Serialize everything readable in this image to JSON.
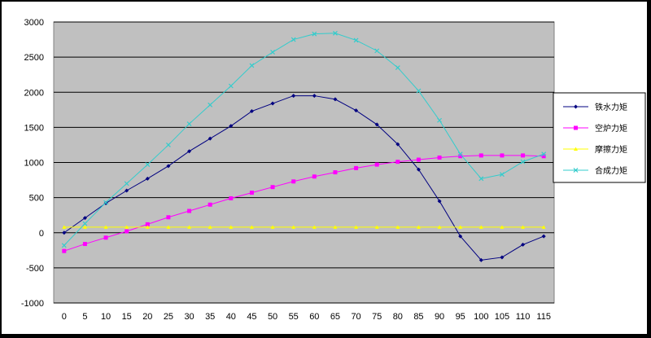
{
  "chart_data": {
    "type": "line",
    "title": "",
    "xlabel": "",
    "ylabel": "",
    "x": [
      0,
      5,
      10,
      15,
      20,
      25,
      30,
      35,
      40,
      45,
      50,
      55,
      60,
      65,
      70,
      75,
      80,
      85,
      90,
      95,
      100,
      105,
      110,
      115
    ],
    "ylim": [
      -1000,
      3000
    ],
    "yticks": [
      -1000,
      -500,
      0,
      500,
      1000,
      1500,
      2000,
      2500,
      3000
    ],
    "grid": true,
    "plot_background": "#c0c0c0",
    "legend_position": "right",
    "series": [
      {
        "name": "铁水力矩",
        "color": "#000080",
        "marker": "diamond",
        "values": [
          0,
          210,
          420,
          600,
          770,
          950,
          1160,
          1340,
          1520,
          1730,
          1840,
          1950,
          1950,
          1900,
          1740,
          1540,
          1260,
          900,
          450,
          -50,
          -390,
          -350,
          -170,
          -50
        ]
      },
      {
        "name": "空炉力矩",
        "color": "#ff00ff",
        "marker": "square",
        "values": [
          -260,
          -160,
          -70,
          20,
          120,
          220,
          310,
          400,
          490,
          570,
          650,
          730,
          800,
          860,
          920,
          970,
          1010,
          1040,
          1070,
          1090,
          1100,
          1100,
          1100,
          1090
        ]
      },
      {
        "name": "摩擦力矩",
        "color": "#ffff00",
        "marker": "triangle",
        "values": [
          80,
          80,
          80,
          80,
          80,
          80,
          80,
          80,
          80,
          80,
          80,
          80,
          80,
          80,
          80,
          80,
          80,
          80,
          80,
          80,
          80,
          80,
          80,
          80
        ]
      },
      {
        "name": "合成力矩",
        "color": "#33cccc",
        "marker": "x",
        "values": [
          -180,
          130,
          430,
          700,
          970,
          1250,
          1550,
          1820,
          2090,
          2380,
          2570,
          2750,
          2830,
          2840,
          2740,
          2590,
          2350,
          2020,
          1600,
          1120,
          770,
          830,
          1010,
          1120
        ]
      }
    ]
  }
}
